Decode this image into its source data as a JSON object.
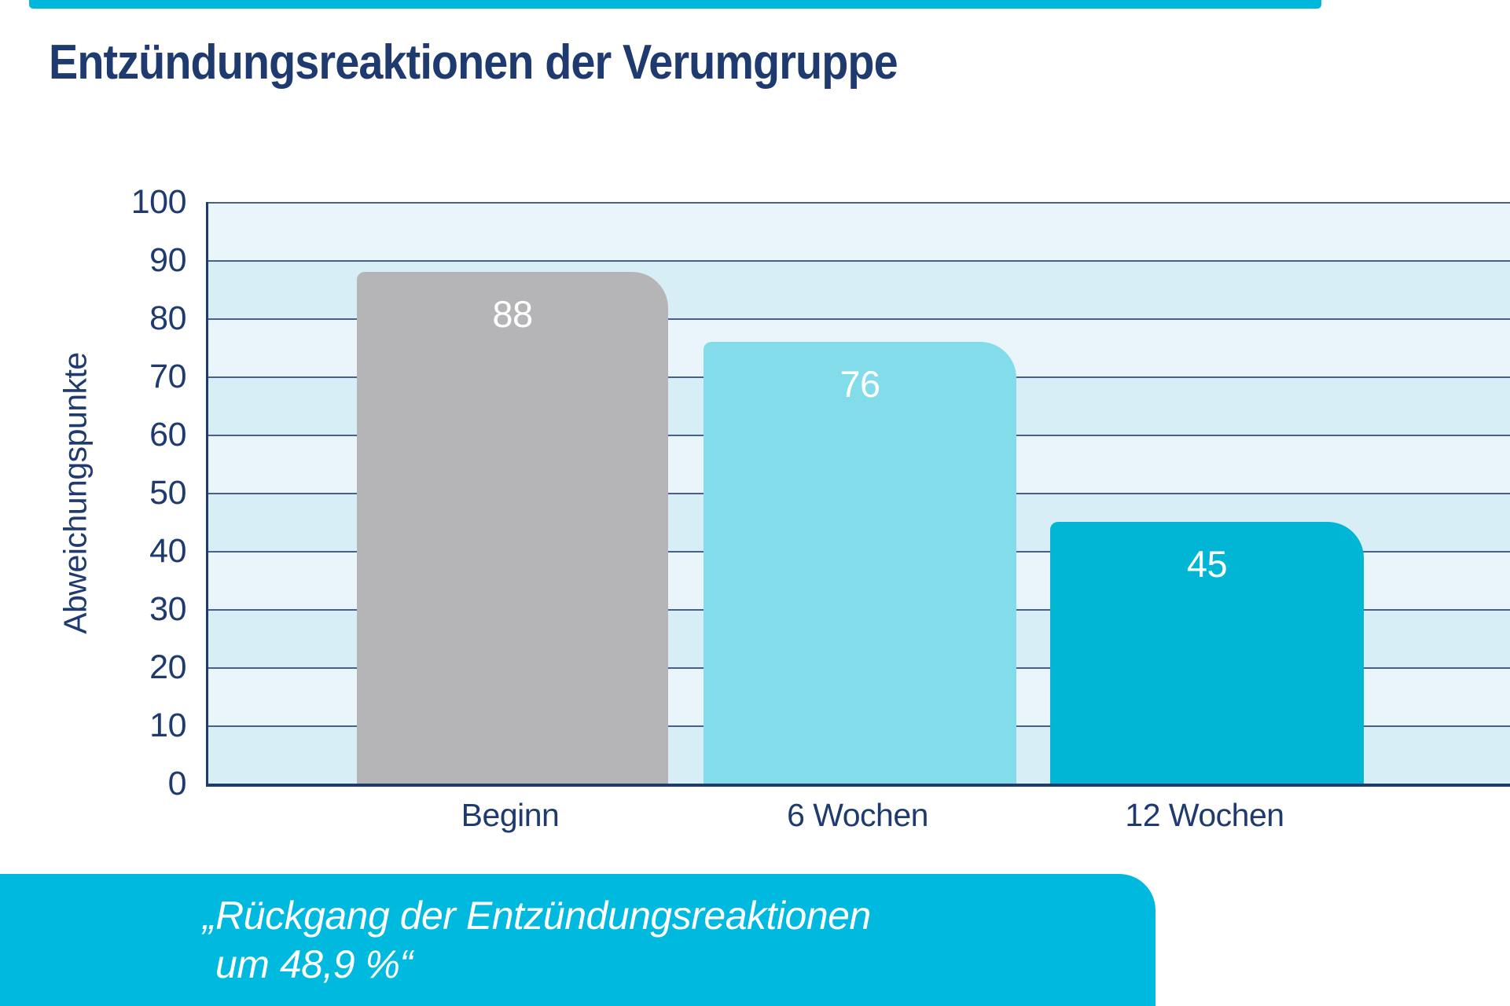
{
  "page": {
    "title": "Entzündungsreaktionen der Verumgruppe",
    "title_color": "#1e3a6e",
    "text_color": "#1e3a6e",
    "top_accent_bar_color": "#00b7dc"
  },
  "chart_data": {
    "type": "bar",
    "title": "Entzündungsreaktionen der Verumgruppe",
    "categories": [
      "Beginn",
      "6 Wochen",
      "12 Wochen"
    ],
    "values": [
      88,
      76,
      45
    ],
    "bar_labels": [
      "88",
      "76",
      "45"
    ],
    "bar_colors": [
      "#b5b5b7",
      "#82dcea",
      "#00b6d4"
    ],
    "bar_label_color": "#ffffff",
    "xlabel": "",
    "ylabel": "Abweichungspunkte",
    "ylim": [
      0,
      100
    ],
    "yticks": [
      100,
      90,
      80,
      70,
      60,
      50,
      40,
      30,
      20,
      10,
      0
    ],
    "grid": "horizontal-bands",
    "band_colors": [
      "#e9f5fa",
      "#d7eef7"
    ],
    "gridline_color": "#46618e",
    "axis_color": "#1e3a6e",
    "legend": "none"
  },
  "quote_banner": {
    "line1": "„Rückgang der Entzündungsreaktionen",
    "line2": "um 48,9 %“",
    "background_color": "#00b9de",
    "text_color": "#ffffff"
  }
}
